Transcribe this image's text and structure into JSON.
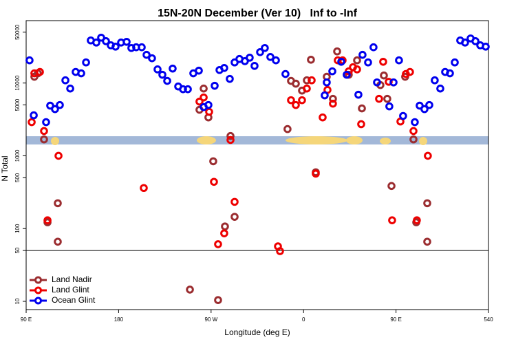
{
  "chart_data": {
    "type": "scatter",
    "title": "15N-20N December (Ver 10)   Inf to -Inf",
    "x_label": "Longitude (deg E)",
    "y_label": "N Total",
    "log_y": true,
    "legend": "bottom-left",
    "hline": 50,
    "xlim": [
      90,
      540
    ],
    "xticks": [
      {
        "value": 90,
        "label": "90 E"
      },
      180,
      {
        "value": 270,
        "label": "90 W"
      },
      {
        "value": 360,
        "label": "0"
      },
      {
        "value": 450,
        "label": "90 E"
      },
      540
    ],
    "ylim": [
      7.7,
      72000
    ],
    "yticks": [
      10,
      50,
      100,
      500,
      1000,
      5000,
      10000,
      50000
    ],
    "series": [
      {
        "name": "Land Nadir",
        "color": "#9b2d30",
        "x": [
          98.0,
          101.4,
          107.4,
          120.8,
          120.8,
          110.8,
          249.4,
          258.7,
          262.8,
          267.4,
          272.1,
          276.8,
          283.5,
          292.9,
          288.9,
          344.4,
          347.8,
          352.5,
          358.5,
          363.2,
          367.2,
          371.9,
          382.6,
          388.6,
          392.7,
          404.0,
          412.1,
          416.8,
          438.2,
          434.8,
          441.5,
          445.6,
          458.9,
          467.0,
          469.7,
          480.4,
          480.4
        ],
        "values": [
          12200,
          13600,
          1680,
          223,
          66,
          122,
          14.5,
          4290,
          8400,
          3370,
          841,
          10.4,
          107,
          145,
          1870,
          2330,
          10700,
          9800,
          7870,
          10900,
          20900,
          594,
          12200,
          6070,
          27200,
          13000,
          20500,
          4480,
          12700,
          9380,
          6070,
          385,
          12200,
          1680,
          122,
          223,
          66
        ]
      },
      {
        "name": "Land Glint",
        "color": "#ee0000",
        "x": [
          95.4,
          98.0,
          103.4,
          107.4,
          110.8,
          121.5,
          204.5,
          258.7,
          262.8,
          268.1,
          272.8,
          276.8,
          282.8,
          292.9,
          288.9,
          335.1,
          337.1,
          347.8,
          352.5,
          358.5,
          363.2,
          367.9,
          371.9,
          378.6,
          383.3,
          388.6,
          393.3,
          398.0,
          404.0,
          408.1,
          412.1,
          416.1,
          433.5,
          437.5,
          442.9,
          446.2,
          454.3,
          459.6,
          463.6,
          467.0,
          470.3,
          481.0
        ],
        "values": [
          2900,
          13600,
          14200,
          2190,
          130,
          1000,
          361,
          5560,
          6340,
          4020,
          439,
          61,
          86,
          233,
          1650,
          57,
          49,
          5810,
          4990,
          5810,
          8400,
          10900,
          569,
          3370,
          8050,
          5210,
          20500,
          20500,
          14500,
          16500,
          15400,
          2720,
          6070,
          19600,
          10400,
          130,
          2960,
          13300,
          14200,
          2190,
          130,
          1000
        ]
      },
      {
        "name": "Ocean Glint",
        "color": "#0000ee",
        "x": [
          93.3,
          97.4,
          109.4,
          113.4,
          118.1,
          122.8,
          128.2,
          132.9,
          138.2,
          143.6,
          148.3,
          152.9,
          158.3,
          163.0,
          167.7,
          172.4,
          177.0,
          182.4,
          187.8,
          192.4,
          197.1,
          202.5,
          207.2,
          212.5,
          217.9,
          222.6,
          227.3,
          232.6,
          238.0,
          242.7,
          247.4,
          252.7,
          258.1,
          262.8,
          267.4,
          273.5,
          278.2,
          282.8,
          288.2,
          292.9,
          297.6,
          302.9,
          307.6,
          312.3,
          317.7,
          322.3,
          327.7,
          333.1,
          342.4,
          380.6,
          382.6,
          388.0,
          396.7,
          402.0,
          413.4,
          417.4,
          422.8,
          428.1,
          431.5,
          443.5,
          447.6,
          452.9,
          456.9,
          468.3,
          473.0,
          477.7,
          482.4,
          487.7,
          493.1,
          497.8,
          502.5,
          507.2,
          512.5,
          517.2,
          522.6,
          527.3,
          532.0,
          537.3
        ],
        "values": [
          20500,
          3600,
          2900,
          4890,
          4380,
          4990,
          10900,
          8400,
          14200,
          13600,
          19200,
          38500,
          36000,
          42000,
          37600,
          33000,
          31600,
          36000,
          36800,
          30300,
          31000,
          31000,
          24400,
          21900,
          15400,
          13000,
          10700,
          15800,
          8970,
          8220,
          8220,
          13600,
          14800,
          4670,
          4990,
          9170,
          15100,
          16100,
          11400,
          19200,
          21400,
          20000,
          22300,
          17200,
          26600,
          30300,
          22800,
          20500,
          13300,
          6770,
          10200,
          14500,
          19600,
          13000,
          6910,
          24400,
          19200,
          31000,
          10200,
          4780,
          10200,
          20500,
          3530,
          2900,
          4890,
          4380,
          4990,
          10900,
          8400,
          14200,
          13600,
          19200,
          38500,
          36000,
          41000,
          37600,
          33000,
          31600
        ]
      }
    ]
  }
}
